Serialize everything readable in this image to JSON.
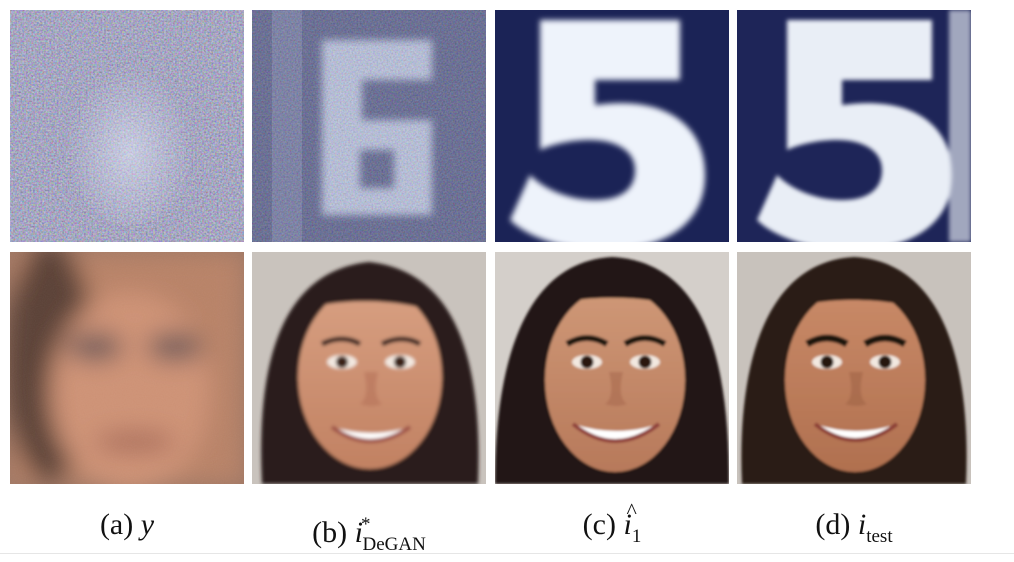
{
  "figure": {
    "captions": [
      {
        "label": "(a)",
        "symbol": "y",
        "sub": "",
        "sup": ""
      },
      {
        "label": "(b)",
        "symbol": "i",
        "sub": "DeGAN",
        "sup": "*"
      },
      {
        "label": "(c)",
        "symbol": "i",
        "sub": "1",
        "sup": "",
        "hat": "^"
      },
      {
        "label": "(d)",
        "symbol": "i",
        "sub": "test",
        "sup": ""
      }
    ],
    "rows": [
      {
        "kind": "digit-row",
        "panels": [
          {
            "name": "svhn-noisy",
            "content": "noisy image"
          },
          {
            "name": "svhn-degan",
            "content": "digit 6"
          },
          {
            "name": "svhn-estimate",
            "content": "digit 5"
          },
          {
            "name": "svhn-test",
            "content": "digit 5"
          }
        ]
      },
      {
        "kind": "face-row",
        "panels": [
          {
            "name": "face-noisy",
            "content": "blurred face"
          },
          {
            "name": "face-degan",
            "content": "face"
          },
          {
            "name": "face-estimate",
            "content": "face"
          },
          {
            "name": "face-test",
            "content": "face"
          }
        ]
      }
    ],
    "colors": {
      "navy": "#1b2356",
      "digit_white": "#eef3fb",
      "skin": "#c98a68",
      "hair": "#2a1d18",
      "blur_skin": "#b77f62"
    }
  }
}
